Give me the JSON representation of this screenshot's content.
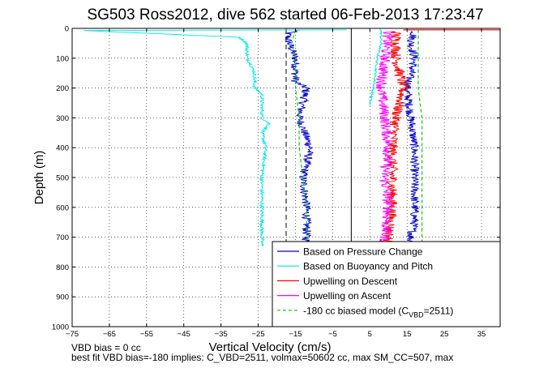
{
  "chart_data": {
    "type": "line",
    "title": "SG503 Ross2012, dive 562 started 06-Feb-2013 17:23:47",
    "xlabel": "Vertical Velocity (cm/s)",
    "ylabel": "Depth (m)",
    "xlim": [
      -75,
      40
    ],
    "ylim": [
      0,
      1000
    ],
    "y_reversed": true,
    "grid": true,
    "x_ticks": [
      -75,
      -65,
      -55,
      -45,
      -35,
      -25,
      -15,
      -5,
      5,
      15,
      25,
      35
    ],
    "y_ticks": [
      0,
      100,
      200,
      300,
      400,
      500,
      600,
      700,
      800,
      900,
      1000
    ],
    "reference_lines": {
      "solid_x": 0,
      "dashed_x": -17.5
    },
    "legend_location": "bottom-right",
    "legend": [
      {
        "label": "Based on Pressure Change",
        "color": "#0000cc",
        "style": "solid"
      },
      {
        "label": "Based on Buoyancy and Pitch",
        "color": "#00e5e5",
        "style": "solid"
      },
      {
        "label": "Upwelling on Descent",
        "color": "#ff0000",
        "style": "solid"
      },
      {
        "label": "Upwelling on Ascent",
        "color": "#ff00ff",
        "style": "solid"
      },
      {
        "label": "-180 cc biased model (C",
        "sub": "VBD",
        "suffix": "=2511)",
        "color": "#00cc00",
        "style": "dashed"
      }
    ],
    "series": [
      {
        "key": "pressure_descent",
        "color": "#0000cc",
        "style": "solid",
        "noise": 1.2,
        "x": [
          -14,
          -17,
          -17,
          -15,
          -15,
          -12,
          -14,
          -11,
          -13,
          -12,
          -12,
          -12
        ],
        "y": [
          5,
          15,
          40,
          100,
          180,
          200,
          300,
          400,
          500,
          600,
          700,
          730
        ]
      },
      {
        "key": "pressure_ascent",
        "color": "#0000cc",
        "style": "solid",
        "noise": 1.2,
        "x": [
          17,
          16,
          17,
          15,
          16,
          17,
          17,
          17,
          17,
          16,
          16
        ],
        "y": [
          10,
          50,
          100,
          200,
          300,
          400,
          500,
          600,
          650,
          700,
          730
        ]
      },
      {
        "key": "buoyancy_descent",
        "color": "#00e5e5",
        "style": "solid",
        "noise": 0.5,
        "x": [
          -1,
          -72,
          -30,
          -28,
          -28,
          -27,
          -26,
          -26,
          -24,
          -24,
          -22,
          -24,
          -23,
          -24,
          -24,
          -24
        ],
        "y": [
          5,
          7,
          30,
          50,
          100,
          120,
          150,
          200,
          220,
          300,
          320,
          350,
          400,
          500,
          600,
          730
        ]
      },
      {
        "key": "buoyancy_ascent",
        "color": "#00e5e5",
        "style": "solid",
        "noise": 0.3,
        "x": [
          8,
          8,
          7,
          6,
          5,
          5
        ],
        "y": [
          0,
          50,
          100,
          200,
          250,
          260
        ]
      },
      {
        "key": "upwelling_descent",
        "color": "#ff0000",
        "style": "solid",
        "noise": 1.5,
        "x": [
          12,
          12,
          12,
          14,
          12,
          11,
          11,
          11,
          10,
          10
        ],
        "y": [
          10,
          50,
          100,
          200,
          300,
          400,
          500,
          600,
          700,
          730
        ]
      },
      {
        "key": "upwelling_ascent",
        "color": "#ff00ff",
        "style": "solid",
        "noise": 1.5,
        "x": [
          10,
          9,
          8,
          9,
          10,
          9,
          10,
          9,
          9
        ],
        "y": [
          10,
          100,
          200,
          300,
          400,
          500,
          600,
          700,
          730
        ]
      },
      {
        "key": "model_descent",
        "color": "#00cc00",
        "style": "dashed",
        "noise": 0,
        "x": [
          -15,
          -16,
          -15,
          -15,
          -14,
          -14,
          -13,
          -12,
          -12,
          -12,
          -12
        ],
        "y": [
          5,
          50,
          100,
          200,
          300,
          400,
          500,
          600,
          650,
          700,
          730
        ]
      },
      {
        "key": "model_ascent",
        "color": "#00cc00",
        "style": "dashed",
        "noise": 0,
        "x": [
          18,
          18,
          19,
          19,
          19,
          19
        ],
        "y": [
          5,
          200,
          300,
          500,
          700,
          730
        ]
      },
      {
        "key": "surface_spikes",
        "color": "#ff0000",
        "style": "solid",
        "noise": 0,
        "x": [
          14,
          40
        ],
        "y": [
          5,
          5
        ]
      }
    ]
  },
  "footer": {
    "bias_note": "VBD bias = 0 cc",
    "fit_note": "best fit VBD bias=-180 implies: C_VBD=2511, volmax=50602 cc, max SM_CC=507, max"
  }
}
